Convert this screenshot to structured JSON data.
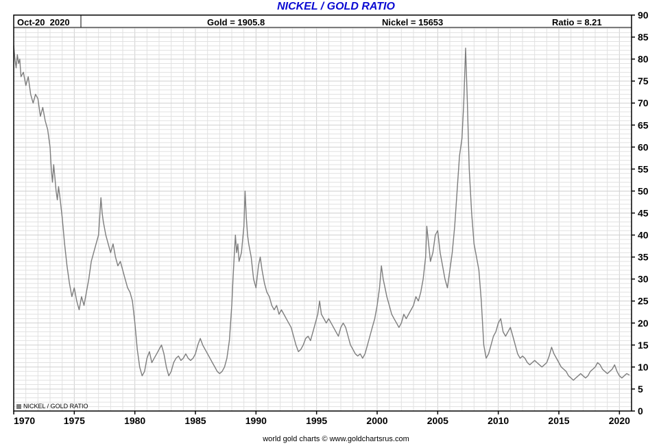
{
  "title": "NICKEL / GOLD RATIO",
  "header": {
    "date": "Oct-20  2020",
    "gold": "Gold = 1905.8",
    "nickel": "Nickel = 15653",
    "ratio": "Ratio = 8.21"
  },
  "legend": {
    "label": "NICKEL / GOLD RATIO"
  },
  "footer": "world gold charts © www.goldchartsrus.com",
  "colors": {
    "title": "#0a0ad2",
    "line": "#7d7d7d",
    "grid_minor": "#e1e1e1",
    "grid_major": "#cfcfcf",
    "axis": "#000000",
    "legend_swatch": "#7d7d7d"
  },
  "chart_data": {
    "type": "line",
    "title": "NICKEL / GOLD RATIO",
    "xlabel": "",
    "ylabel": "",
    "xlim": [
      1970,
      2021
    ],
    "ylim": [
      0,
      90
    ],
    "x_ticks": [
      1970,
      1975,
      1980,
      1985,
      1990,
      1995,
      2000,
      2005,
      2010,
      2015,
      2020
    ],
    "y_ticks": [
      0,
      5,
      10,
      15,
      20,
      25,
      30,
      35,
      40,
      45,
      50,
      55,
      60,
      65,
      70,
      75,
      80,
      85,
      90
    ],
    "grid": true,
    "legend_position": "bottom-left",
    "latest": {
      "date": "Oct-20 2020",
      "gold": 1905.8,
      "nickel": 15653,
      "ratio": 8.21
    },
    "series": [
      {
        "name": "NICKEL / GOLD RATIO",
        "color": "#7d7d7d",
        "points": [
          [
            1970,
            83
          ],
          [
            1970.1,
            80
          ],
          [
            1970.2,
            78
          ],
          [
            1970.3,
            81
          ],
          [
            1970.4,
            79
          ],
          [
            1970.5,
            80
          ],
          [
            1970.6,
            76
          ],
          [
            1970.8,
            77
          ],
          [
            1971,
            74
          ],
          [
            1971.2,
            76
          ],
          [
            1971.4,
            72
          ],
          [
            1971.6,
            70
          ],
          [
            1971.8,
            72
          ],
          [
            1972,
            71
          ],
          [
            1972.2,
            67
          ],
          [
            1972.4,
            69
          ],
          [
            1972.6,
            66
          ],
          [
            1972.8,
            64
          ],
          [
            1973,
            60
          ],
          [
            1973.1,
            55
          ],
          [
            1973.2,
            52
          ],
          [
            1973.3,
            56
          ],
          [
            1973.4,
            53
          ],
          [
            1973.5,
            50
          ],
          [
            1973.6,
            48
          ],
          [
            1973.7,
            51
          ],
          [
            1973.8,
            49
          ],
          [
            1974,
            44
          ],
          [
            1974.2,
            38
          ],
          [
            1974.4,
            33
          ],
          [
            1974.6,
            29
          ],
          [
            1974.8,
            26
          ],
          [
            1975,
            28
          ],
          [
            1975.2,
            25
          ],
          [
            1975.4,
            23
          ],
          [
            1975.6,
            26
          ],
          [
            1975.8,
            24
          ],
          [
            1976,
            27
          ],
          [
            1976.2,
            30
          ],
          [
            1976.4,
            34
          ],
          [
            1976.6,
            36
          ],
          [
            1976.8,
            38
          ],
          [
            1977,
            40
          ],
          [
            1977.1,
            44
          ],
          [
            1977.2,
            48.5
          ],
          [
            1977.3,
            45
          ],
          [
            1977.4,
            43
          ],
          [
            1977.6,
            40
          ],
          [
            1977.8,
            38
          ],
          [
            1978,
            36
          ],
          [
            1978.2,
            38
          ],
          [
            1978.4,
            35
          ],
          [
            1978.6,
            33
          ],
          [
            1978.8,
            34
          ],
          [
            1979,
            32
          ],
          [
            1979.2,
            30
          ],
          [
            1979.4,
            28
          ],
          [
            1979.6,
            27
          ],
          [
            1979.8,
            25
          ],
          [
            1980,
            20
          ],
          [
            1980.2,
            14
          ],
          [
            1980.4,
            10
          ],
          [
            1980.6,
            8
          ],
          [
            1980.8,
            9
          ],
          [
            1981,
            12
          ],
          [
            1981.2,
            13.5
          ],
          [
            1981.4,
            11
          ],
          [
            1981.6,
            12
          ],
          [
            1981.8,
            13
          ],
          [
            1982,
            14
          ],
          [
            1982.2,
            15
          ],
          [
            1982.4,
            13
          ],
          [
            1982.6,
            10
          ],
          [
            1982.8,
            8
          ],
          [
            1983,
            9
          ],
          [
            1983.2,
            11
          ],
          [
            1983.4,
            12
          ],
          [
            1983.6,
            12.5
          ],
          [
            1983.8,
            11.5
          ],
          [
            1984,
            12
          ],
          [
            1984.2,
            13
          ],
          [
            1984.4,
            12
          ],
          [
            1984.6,
            11.5
          ],
          [
            1984.8,
            12
          ],
          [
            1985,
            13
          ],
          [
            1985.2,
            15
          ],
          [
            1985.4,
            16.5
          ],
          [
            1985.6,
            15
          ],
          [
            1985.8,
            14
          ],
          [
            1986,
            13
          ],
          [
            1986.2,
            12
          ],
          [
            1986.4,
            11
          ],
          [
            1986.6,
            10
          ],
          [
            1986.8,
            9
          ],
          [
            1987,
            8.5
          ],
          [
            1987.2,
            9
          ],
          [
            1987.4,
            10
          ],
          [
            1987.6,
            12
          ],
          [
            1987.8,
            16
          ],
          [
            1988,
            24
          ],
          [
            1988.1,
            30
          ],
          [
            1988.2,
            35
          ],
          [
            1988.3,
            40
          ],
          [
            1988.4,
            36
          ],
          [
            1988.5,
            38
          ],
          [
            1988.6,
            34
          ],
          [
            1988.8,
            36
          ],
          [
            1989,
            42
          ],
          [
            1989.1,
            50
          ],
          [
            1989.2,
            44
          ],
          [
            1989.3,
            40
          ],
          [
            1989.4,
            38
          ],
          [
            1989.6,
            35
          ],
          [
            1989.8,
            30
          ],
          [
            1990,
            28
          ],
          [
            1990.2,
            33
          ],
          [
            1990.35,
            35
          ],
          [
            1990.5,
            32
          ],
          [
            1990.7,
            29
          ],
          [
            1990.9,
            27
          ],
          [
            1991.1,
            26
          ],
          [
            1991.3,
            24
          ],
          [
            1991.5,
            23
          ],
          [
            1991.7,
            24
          ],
          [
            1991.9,
            22
          ],
          [
            1992.1,
            23
          ],
          [
            1992.3,
            22
          ],
          [
            1992.5,
            21
          ],
          [
            1992.7,
            20
          ],
          [
            1992.9,
            19
          ],
          [
            1993.1,
            17
          ],
          [
            1993.3,
            15
          ],
          [
            1993.5,
            13.5
          ],
          [
            1993.7,
            14
          ],
          [
            1993.9,
            15
          ],
          [
            1994.1,
            16.5
          ],
          [
            1994.3,
            17
          ],
          [
            1994.5,
            16
          ],
          [
            1994.7,
            18
          ],
          [
            1994.9,
            20
          ],
          [
            1995.1,
            22
          ],
          [
            1995.25,
            25
          ],
          [
            1995.4,
            22
          ],
          [
            1995.6,
            21
          ],
          [
            1995.8,
            20
          ],
          [
            1996,
            21
          ],
          [
            1996.2,
            20
          ],
          [
            1996.4,
            19
          ],
          [
            1996.6,
            18
          ],
          [
            1996.8,
            17
          ],
          [
            1997,
            19
          ],
          [
            1997.2,
            20
          ],
          [
            1997.4,
            19
          ],
          [
            1997.6,
            17
          ],
          [
            1997.8,
            15
          ],
          [
            1998,
            14
          ],
          [
            1998.2,
            13
          ],
          [
            1998.4,
            12.5
          ],
          [
            1998.6,
            13
          ],
          [
            1998.8,
            12
          ],
          [
            1999,
            13
          ],
          [
            1999.2,
            15
          ],
          [
            1999.4,
            17
          ],
          [
            1999.6,
            19
          ],
          [
            1999.8,
            21
          ],
          [
            2000,
            24
          ],
          [
            2000.2,
            28
          ],
          [
            2000.35,
            33
          ],
          [
            2000.5,
            30
          ],
          [
            2000.65,
            28
          ],
          [
            2000.8,
            26
          ],
          [
            2001,
            24
          ],
          [
            2001.2,
            22
          ],
          [
            2001.4,
            21
          ],
          [
            2001.6,
            20
          ],
          [
            2001.8,
            19
          ],
          [
            2002,
            20
          ],
          [
            2002.2,
            22
          ],
          [
            2002.4,
            21
          ],
          [
            2002.6,
            22
          ],
          [
            2002.8,
            23
          ],
          [
            2003,
            24
          ],
          [
            2003.2,
            26
          ],
          [
            2003.4,
            25
          ],
          [
            2003.6,
            27
          ],
          [
            2003.8,
            30
          ],
          [
            2004,
            35
          ],
          [
            2004.1,
            42
          ],
          [
            2004.25,
            38
          ],
          [
            2004.4,
            34
          ],
          [
            2004.6,
            36
          ],
          [
            2004.8,
            40
          ],
          [
            2005,
            41
          ],
          [
            2005.2,
            36
          ],
          [
            2005.4,
            33
          ],
          [
            2005.6,
            30
          ],
          [
            2005.8,
            28
          ],
          [
            2006,
            32
          ],
          [
            2006.2,
            36
          ],
          [
            2006.4,
            42
          ],
          [
            2006.6,
            50
          ],
          [
            2006.8,
            58
          ],
          [
            2007,
            62
          ],
          [
            2007.15,
            70
          ],
          [
            2007.3,
            82.5
          ],
          [
            2007.45,
            70
          ],
          [
            2007.6,
            55
          ],
          [
            2007.8,
            45
          ],
          [
            2008,
            38
          ],
          [
            2008.2,
            35
          ],
          [
            2008.4,
            32
          ],
          [
            2008.6,
            25
          ],
          [
            2008.8,
            15
          ],
          [
            2009,
            12
          ],
          [
            2009.2,
            13
          ],
          [
            2009.4,
            15
          ],
          [
            2009.6,
            17
          ],
          [
            2009.8,
            18
          ],
          [
            2010,
            20
          ],
          [
            2010.2,
            21
          ],
          [
            2010.4,
            18
          ],
          [
            2010.6,
            17
          ],
          [
            2010.8,
            18
          ],
          [
            2011,
            19
          ],
          [
            2011.2,
            17
          ],
          [
            2011.4,
            15
          ],
          [
            2011.6,
            13
          ],
          [
            2011.8,
            12
          ],
          [
            2012,
            12.5
          ],
          [
            2012.2,
            12
          ],
          [
            2012.4,
            11
          ],
          [
            2012.6,
            10.5
          ],
          [
            2012.8,
            11
          ],
          [
            2013,
            11.5
          ],
          [
            2013.2,
            11
          ],
          [
            2013.4,
            10.5
          ],
          [
            2013.6,
            10
          ],
          [
            2013.8,
            10.5
          ],
          [
            2014,
            11
          ],
          [
            2014.2,
            12.5
          ],
          [
            2014.4,
            14.5
          ],
          [
            2014.6,
            13
          ],
          [
            2014.8,
            12
          ],
          [
            2015,
            11
          ],
          [
            2015.2,
            10
          ],
          [
            2015.4,
            9.5
          ],
          [
            2015.6,
            9
          ],
          [
            2015.8,
            8
          ],
          [
            2016,
            7.5
          ],
          [
            2016.2,
            7
          ],
          [
            2016.4,
            7.5
          ],
          [
            2016.6,
            8
          ],
          [
            2016.8,
            8.5
          ],
          [
            2017,
            8
          ],
          [
            2017.2,
            7.5
          ],
          [
            2017.4,
            8
          ],
          [
            2017.6,
            9
          ],
          [
            2017.8,
            9.5
          ],
          [
            2018,
            10
          ],
          [
            2018.2,
            11
          ],
          [
            2018.4,
            10.5
          ],
          [
            2018.6,
            9.5
          ],
          [
            2018.8,
            9
          ],
          [
            2019,
            8.5
          ],
          [
            2019.2,
            9
          ],
          [
            2019.4,
            9.5
          ],
          [
            2019.6,
            10.5
          ],
          [
            2019.8,
            9
          ],
          [
            2020,
            8
          ],
          [
            2020.2,
            7.5
          ],
          [
            2020.4,
            8
          ],
          [
            2020.6,
            8.5
          ],
          [
            2020.8,
            8.21
          ]
        ]
      }
    ]
  }
}
